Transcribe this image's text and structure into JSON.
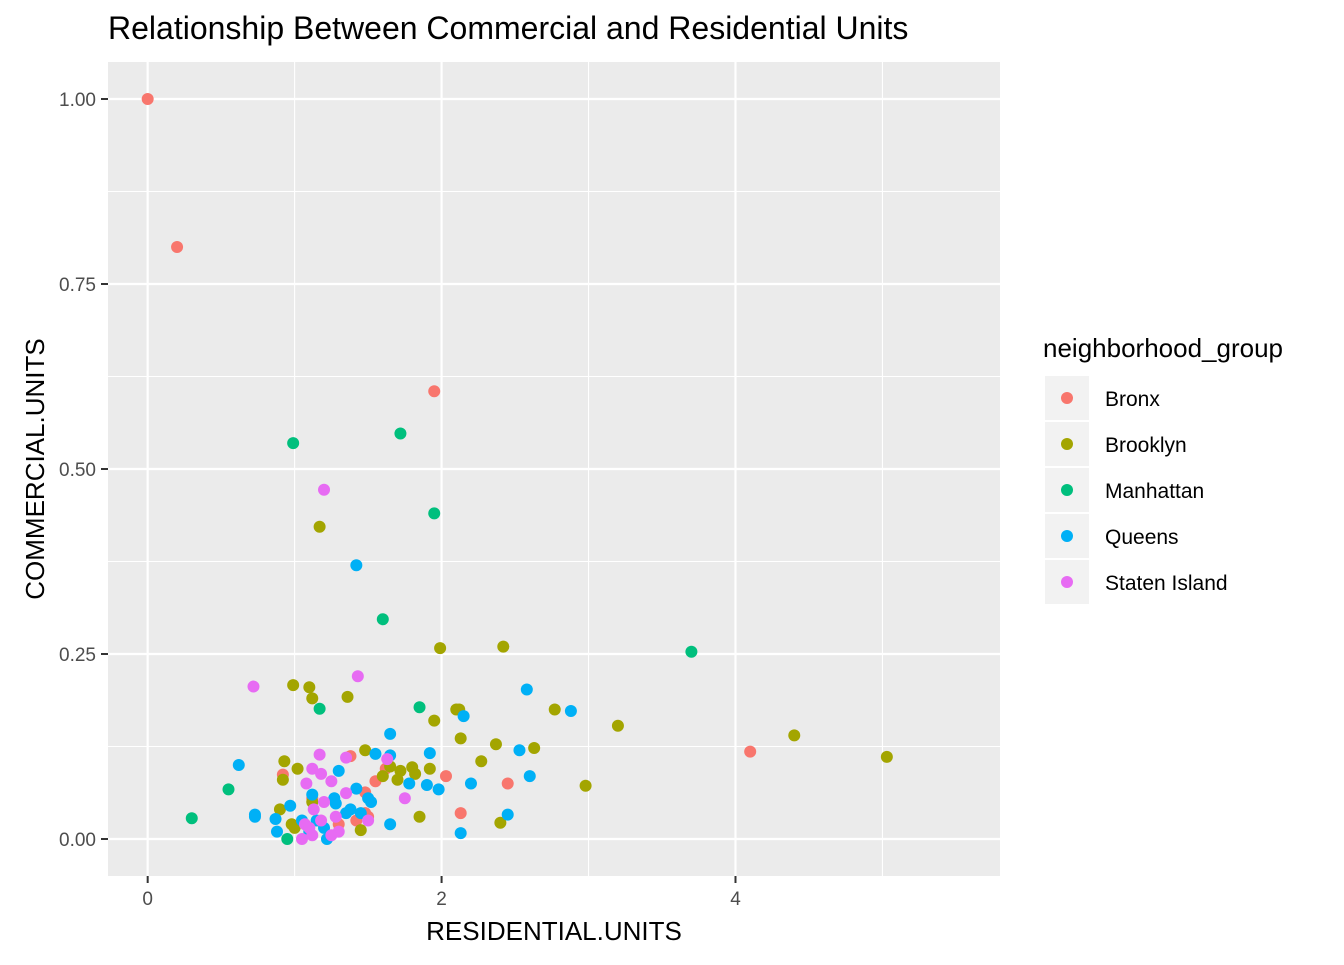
{
  "chart_data": {
    "type": "scatter",
    "title": "Relationship Between Commercial and Residential Units",
    "xlabel": "RESIDENTIAL.UNITS",
    "ylabel": "COMMERCIAL.UNITS",
    "xlim": [
      -0.27,
      5.8
    ],
    "ylim": [
      -0.05,
      1.05
    ],
    "xticks": [
      0,
      2,
      4
    ],
    "xtick_labels": [
      "0",
      "2",
      "4"
    ],
    "yticks": [
      0,
      0.25,
      0.5,
      0.75,
      1.0
    ],
    "ytick_labels": [
      "0.00",
      "0.25",
      "0.50",
      "0.75",
      "1.00"
    ],
    "grid": true,
    "legend": {
      "title": "neighborhood_group",
      "placement": "right"
    },
    "series": [
      {
        "name": "Bronx",
        "color": "#F8766D",
        "points": [
          [
            0.0,
            1.0
          ],
          [
            0.2,
            0.8
          ],
          [
            1.95,
            0.605
          ],
          [
            4.1,
            0.118
          ],
          [
            0.92,
            0.087
          ],
          [
            1.38,
            0.112
          ],
          [
            1.48,
            0.063
          ],
          [
            1.55,
            0.078
          ],
          [
            2.03,
            0.085
          ],
          [
            2.45,
            0.075
          ],
          [
            2.13,
            0.035
          ],
          [
            1.42,
            0.025
          ],
          [
            1.48,
            0.035
          ],
          [
            1.3,
            0.02
          ],
          [
            1.62,
            0.095
          ],
          [
            1.12,
            0.055
          ],
          [
            1.5,
            0.03
          ]
        ]
      },
      {
        "name": "Brooklyn",
        "color": "#A3A500",
        "points": [
          [
            1.17,
            0.422
          ],
          [
            1.99,
            0.258
          ],
          [
            2.42,
            0.26
          ],
          [
            0.99,
            0.208
          ],
          [
            1.1,
            0.205
          ],
          [
            1.12,
            0.19
          ],
          [
            1.36,
            0.192
          ],
          [
            2.1,
            0.175
          ],
          [
            2.12,
            0.175
          ],
          [
            2.77,
            0.175
          ],
          [
            1.95,
            0.16
          ],
          [
            3.2,
            0.153
          ],
          [
            2.13,
            0.136
          ],
          [
            4.4,
            0.14
          ],
          [
            2.37,
            0.128
          ],
          [
            2.63,
            0.123
          ],
          [
            1.48,
            0.12
          ],
          [
            2.27,
            0.105
          ],
          [
            0.93,
            0.105
          ],
          [
            5.03,
            0.111
          ],
          [
            1.02,
            0.095
          ],
          [
            1.65,
            0.098
          ],
          [
            1.8,
            0.097
          ],
          [
            1.92,
            0.095
          ],
          [
            1.72,
            0.092
          ],
          [
            1.6,
            0.085
          ],
          [
            1.82,
            0.088
          ],
          [
            1.7,
            0.08
          ],
          [
            0.92,
            0.08
          ],
          [
            2.98,
            0.072
          ],
          [
            0.9,
            0.04
          ],
          [
            1.85,
            0.03
          ],
          [
            2.4,
            0.022
          ],
          [
            1.45,
            0.012
          ],
          [
            1.0,
            0.015
          ],
          [
            0.98,
            0.02
          ],
          [
            1.12,
            0.05
          ]
        ]
      },
      {
        "name": "Manhattan",
        "color": "#00BF7D",
        "points": [
          [
            0.99,
            0.535
          ],
          [
            1.72,
            0.548
          ],
          [
            1.95,
            0.44
          ],
          [
            1.6,
            0.297
          ],
          [
            3.7,
            0.253
          ],
          [
            1.85,
            0.178
          ],
          [
            1.17,
            0.176
          ],
          [
            0.55,
            0.067
          ],
          [
            0.3,
            0.028
          ],
          [
            0.95,
            0.0
          ]
        ]
      },
      {
        "name": "Queens",
        "color": "#00B0F6",
        "points": [
          [
            1.42,
            0.37
          ],
          [
            2.58,
            0.202
          ],
          [
            2.88,
            0.173
          ],
          [
            2.15,
            0.166
          ],
          [
            1.65,
            0.142
          ],
          [
            1.55,
            0.115
          ],
          [
            1.92,
            0.116
          ],
          [
            1.65,
            0.113
          ],
          [
            2.53,
            0.12
          ],
          [
            0.62,
            0.1
          ],
          [
            1.3,
            0.092
          ],
          [
            2.6,
            0.085
          ],
          [
            1.78,
            0.075
          ],
          [
            1.9,
            0.073
          ],
          [
            2.2,
            0.075
          ],
          [
            1.98,
            0.067
          ],
          [
            1.42,
            0.068
          ],
          [
            1.12,
            0.06
          ],
          [
            1.5,
            0.055
          ],
          [
            1.27,
            0.055
          ],
          [
            1.28,
            0.048
          ],
          [
            1.38,
            0.04
          ],
          [
            1.45,
            0.035
          ],
          [
            0.73,
            0.033
          ],
          [
            0.73,
            0.03
          ],
          [
            0.87,
            0.027
          ],
          [
            0.97,
            0.045
          ],
          [
            2.45,
            0.033
          ],
          [
            1.65,
            0.02
          ],
          [
            2.13,
            0.008
          ],
          [
            1.05,
            0.025
          ],
          [
            1.15,
            0.025
          ],
          [
            1.2,
            0.015
          ],
          [
            1.1,
            0.01
          ],
          [
            0.88,
            0.01
          ],
          [
            1.22,
            0.0
          ],
          [
            1.35,
            0.035
          ],
          [
            1.52,
            0.05
          ]
        ]
      },
      {
        "name": "Staten Island",
        "color": "#E76BF3",
        "points": [
          [
            1.2,
            0.472
          ],
          [
            1.43,
            0.22
          ],
          [
            0.72,
            0.206
          ],
          [
            1.17,
            0.114
          ],
          [
            1.35,
            0.11
          ],
          [
            1.63,
            0.108
          ],
          [
            1.12,
            0.095
          ],
          [
            1.18,
            0.088
          ],
          [
            1.08,
            0.075
          ],
          [
            1.25,
            0.078
          ],
          [
            1.35,
            0.062
          ],
          [
            1.75,
            0.055
          ],
          [
            1.2,
            0.05
          ],
          [
            1.13,
            0.04
          ],
          [
            1.28,
            0.03
          ],
          [
            1.07,
            0.02
          ],
          [
            1.18,
            0.025
          ],
          [
            1.12,
            0.005
          ],
          [
            1.05,
            0.0
          ],
          [
            1.3,
            0.01
          ],
          [
            1.25,
            0.005
          ],
          [
            1.5,
            0.025
          ],
          [
            1.1,
            0.015
          ]
        ]
      }
    ]
  }
}
